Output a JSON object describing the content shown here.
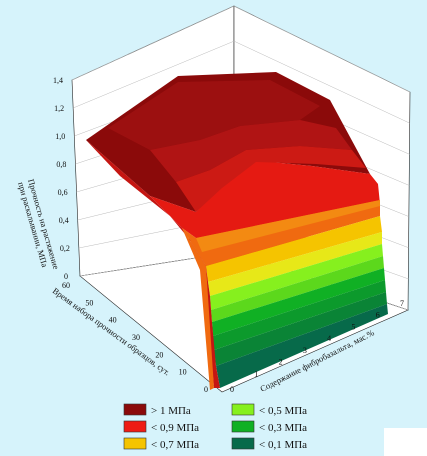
{
  "chart_data": {
    "type": "surface3d",
    "title": "",
    "x_axis": {
      "label": "Содержание фибробазальта, мас.%",
      "ticks": [
        "0",
        "1",
        "2",
        "3",
        "4",
        "5",
        "6",
        "7"
      ],
      "range": [
        0,
        7
      ]
    },
    "y_axis": {
      "label": "Время набора прочности образцов, сут.",
      "ticks": [
        "0",
        "10",
        "20",
        "30",
        "40",
        "50",
        "60"
      ],
      "range": [
        0,
        60
      ]
    },
    "z_axis": {
      "label_line1": "Прочность на растяжение",
      "label_line2": "при раскалывании, МПа",
      "ticks": [
        "0",
        "0,2",
        "0,4",
        "0,6",
        "0,8",
        "1,0",
        "1,2",
        "1,4"
      ],
      "range": [
        0,
        1.4
      ]
    },
    "legend_placement": "bottom",
    "grid": true,
    "legend": [
      {
        "label": "> 1 МПа",
        "color": "#8b0a0a"
      },
      {
        "label": "< 0,9 МПа",
        "color": "#ee1c14"
      },
      {
        "label": "< 0,7 МПа",
        "color": "#f5c400"
      },
      {
        "label": "< 0,5 МПа",
        "color": "#86f01e"
      },
      {
        "label": "< 0,3 МПа",
        "color": "#10b024"
      },
      {
        "label": "< 0,1 МПа",
        "color": "#076a4a"
      }
    ]
  }
}
